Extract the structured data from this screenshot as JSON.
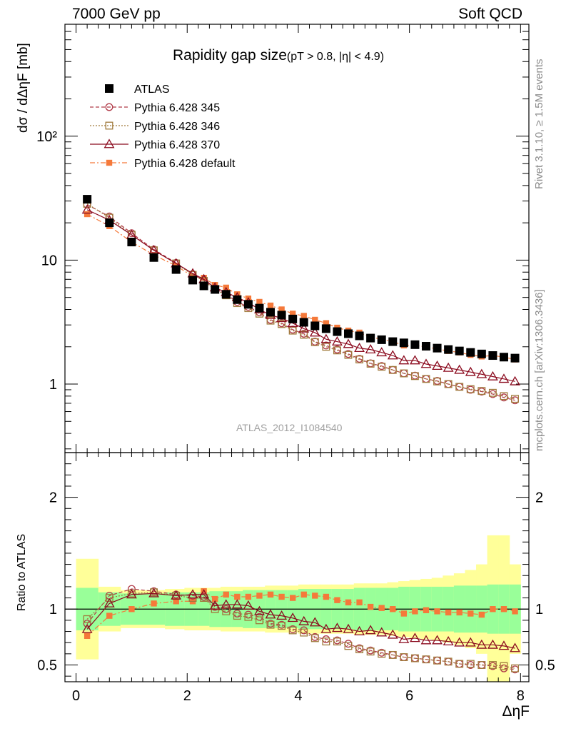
{
  "header": {
    "left": "7000 GeV pp",
    "right": "Soft QCD"
  },
  "side_labels": {
    "rivet": "Rivet 3.1.10, ≥ 1.5M events",
    "mcplots": "mcplots.cern.ch [arXiv:1306.3436]"
  },
  "watermark": "ATLAS_2012_I1084540",
  "colors": {
    "atlas": "#000000",
    "p345": "#b03a48",
    "p346": "#a07a3c",
    "p370": "#8b0a1e",
    "pdef": "#f5793a",
    "band_inner": "#99ff99",
    "band_outer": "#ffff99"
  },
  "chart_data": [
    {
      "type": "scatter",
      "title": "Rapidity gap size",
      "subtitle": "(pT > 0.8, |η| < 4.9)",
      "ylabel": "dσ / dΔηF [mb]",
      "xlabel": "ΔηF",
      "yscale": "log",
      "xlim": [
        -0.2,
        8.15
      ],
      "ylim": [
        0.28,
        800
      ],
      "xticks": [
        "0",
        "2",
        "4",
        "6",
        "8"
      ],
      "yticks": [
        "1",
        "10",
        "10²"
      ],
      "legend_position": "top-left",
      "x": [
        0.2,
        0.6,
        1.0,
        1.4,
        1.8,
        2.1,
        2.3,
        2.5,
        2.7,
        2.9,
        3.1,
        3.3,
        3.5,
        3.7,
        3.9,
        4.1,
        4.3,
        4.5,
        4.7,
        4.9,
        5.1,
        5.3,
        5.5,
        5.7,
        5.9,
        6.1,
        6.3,
        6.5,
        6.7,
        6.9,
        7.1,
        7.3,
        7.5,
        7.7,
        7.9
      ],
      "series": [
        {
          "name": "ATLAS",
          "marker": "filled-square",
          "values": [
            31.0,
            20.0,
            14.0,
            10.5,
            8.4,
            6.9,
            6.2,
            5.8,
            5.3,
            4.8,
            4.4,
            4.1,
            3.8,
            3.6,
            3.35,
            3.15,
            2.95,
            2.8,
            2.65,
            2.55,
            2.45,
            2.35,
            2.28,
            2.2,
            2.15,
            2.08,
            2.02,
            1.95,
            1.9,
            1.85,
            1.8,
            1.75,
            1.7,
            1.65,
            1.62
          ]
        },
        {
          "name": "Pythia 6.428 345",
          "marker": "open-circle",
          "line": "dashed",
          "values": [
            28.0,
            22.5,
            16.5,
            12.2,
            9.5,
            7.7,
            6.9,
            5.9,
            5.3,
            4.6,
            4.2,
            3.8,
            3.3,
            3.1,
            2.75,
            2.55,
            2.2,
            2.05,
            1.9,
            1.75,
            1.6,
            1.47,
            1.4,
            1.3,
            1.22,
            1.17,
            1.1,
            1.06,
            1.0,
            0.95,
            0.9,
            0.87,
            0.83,
            0.78,
            0.74
          ]
        },
        {
          "name": "Pythia 6.428 346",
          "marker": "open-square",
          "line": "dotted",
          "values": [
            28.5,
            22.0,
            16.0,
            12.0,
            9.4,
            7.6,
            6.8,
            5.8,
            5.2,
            4.5,
            4.1,
            3.7,
            3.25,
            3.05,
            2.7,
            2.5,
            2.18,
            2.0,
            1.87,
            1.72,
            1.58,
            1.46,
            1.38,
            1.3,
            1.22,
            1.16,
            1.1,
            1.05,
            1.0,
            0.95,
            0.91,
            0.88,
            0.85,
            0.8,
            0.76
          ]
        },
        {
          "name": "Pythia 6.428 370",
          "marker": "open-triangle",
          "line": "solid",
          "values": [
            25.5,
            21.0,
            16.0,
            12.0,
            9.4,
            7.8,
            7.0,
            6.0,
            5.5,
            5.0,
            4.55,
            4.0,
            3.6,
            3.4,
            3.1,
            2.8,
            2.6,
            2.3,
            2.2,
            2.1,
            1.95,
            1.9,
            1.8,
            1.7,
            1.55,
            1.55,
            1.45,
            1.4,
            1.35,
            1.3,
            1.25,
            1.2,
            1.15,
            1.1,
            1.05
          ]
        },
        {
          "name": "Pythia 6.428 default",
          "marker": "filled-small-square",
          "line": "dash-dot",
          "values": [
            23.5,
            18.8,
            14.0,
            11.0,
            9.0,
            7.4,
            7.2,
            6.3,
            6.0,
            5.3,
            4.9,
            4.6,
            4.3,
            4.0,
            3.7,
            3.55,
            3.3,
            3.1,
            2.85,
            2.7,
            2.6,
            2.4,
            2.3,
            2.2,
            2.05,
            2.05,
            2.0,
            1.92,
            1.85,
            1.8,
            1.72,
            1.67,
            1.7,
            1.65,
            1.58
          ]
        }
      ]
    },
    {
      "type": "scatter",
      "ylabel": "Ratio to ATLAS",
      "ylim": [
        0.35,
        2.4
      ],
      "xlim": [
        -0.2,
        8.15
      ],
      "yticks": [
        "0.5",
        "1",
        "2"
      ],
      "x": [
        0.2,
        0.6,
        1.0,
        1.4,
        1.8,
        2.1,
        2.3,
        2.5,
        2.7,
        2.9,
        3.1,
        3.3,
        3.5,
        3.7,
        3.9,
        4.1,
        4.3,
        4.5,
        4.7,
        4.9,
        5.1,
        5.3,
        5.5,
        5.7,
        5.9,
        6.1,
        6.3,
        6.5,
        6.7,
        6.9,
        7.1,
        7.3,
        7.5,
        7.7,
        7.9
      ],
      "band_outer_halfwidth": [
        0.45,
        0.2,
        0.17,
        0.17,
        0.18,
        0.19,
        0.19,
        0.19,
        0.2,
        0.2,
        0.2,
        0.2,
        0.21,
        0.21,
        0.21,
        0.22,
        0.22,
        0.22,
        0.22,
        0.22,
        0.23,
        0.23,
        0.23,
        0.24,
        0.25,
        0.26,
        0.27,
        0.28,
        0.3,
        0.32,
        0.35,
        0.4,
        0.66,
        0.66,
        0.4
      ],
      "band_inner_halfwidth": [
        0.19,
        0.15,
        0.14,
        0.14,
        0.15,
        0.15,
        0.15,
        0.16,
        0.16,
        0.16,
        0.17,
        0.17,
        0.17,
        0.17,
        0.17,
        0.18,
        0.18,
        0.18,
        0.18,
        0.18,
        0.19,
        0.19,
        0.19,
        0.19,
        0.2,
        0.2,
        0.2,
        0.2,
        0.2,
        0.21,
        0.21,
        0.21,
        0.22,
        0.22,
        0.22
      ],
      "series": [
        {
          "name": "Pythia 6.428 345",
          "values": [
            0.87,
            1.12,
            1.18,
            1.16,
            1.13,
            1.12,
            1.11,
            1.02,
            1.0,
            0.96,
            0.95,
            0.93,
            0.87,
            0.86,
            0.82,
            0.81,
            0.75,
            0.73,
            0.72,
            0.69,
            0.65,
            0.63,
            0.61,
            0.59,
            0.57,
            0.56,
            0.55,
            0.54,
            0.53,
            0.51,
            0.5,
            0.5,
            0.49,
            0.47,
            0.46
          ]
        },
        {
          "name": "Pythia 6.428 346",
          "values": [
            0.91,
            1.1,
            1.14,
            1.15,
            1.12,
            1.1,
            1.1,
            1.0,
            0.98,
            0.94,
            0.93,
            0.9,
            0.86,
            0.85,
            0.81,
            0.79,
            0.74,
            0.71,
            0.71,
            0.67,
            0.64,
            0.62,
            0.6,
            0.59,
            0.57,
            0.56,
            0.55,
            0.54,
            0.53,
            0.51,
            0.51,
            0.5,
            0.5,
            0.49,
            0.47
          ]
        },
        {
          "name": "Pythia 6.428 370",
          "values": [
            0.82,
            1.05,
            1.13,
            1.14,
            1.12,
            1.13,
            1.13,
            1.03,
            1.04,
            1.04,
            1.03,
            0.98,
            0.95,
            0.94,
            0.92,
            0.89,
            0.88,
            0.82,
            0.83,
            0.82,
            0.8,
            0.81,
            0.79,
            0.77,
            0.73,
            0.74,
            0.72,
            0.72,
            0.71,
            0.7,
            0.7,
            0.68,
            0.68,
            0.67,
            0.65
          ]
        },
        {
          "name": "Pythia 6.428 default",
          "values": [
            0.76,
            0.94,
            1.0,
            1.05,
            1.07,
            1.07,
            1.16,
            1.09,
            1.13,
            1.11,
            1.11,
            1.12,
            1.13,
            1.11,
            1.1,
            1.13,
            1.12,
            1.11,
            1.08,
            1.06,
            1.06,
            1.02,
            1.01,
            1.0,
            0.96,
            0.98,
            0.99,
            0.98,
            0.97,
            0.97,
            0.96,
            0.95,
            1.0,
            1.0,
            0.98
          ]
        }
      ]
    }
  ]
}
